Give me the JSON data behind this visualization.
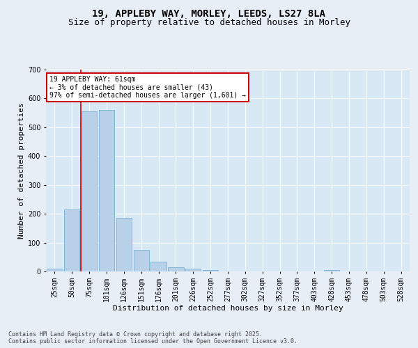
{
  "title_line1": "19, APPLEBY WAY, MORLEY, LEEDS, LS27 8LA",
  "title_line2": "Size of property relative to detached houses in Morley",
  "xlabel": "Distribution of detached houses by size in Morley",
  "ylabel": "Number of detached properties",
  "bar_labels": [
    "25sqm",
    "50sqm",
    "75sqm",
    "101sqm",
    "126sqm",
    "151sqm",
    "176sqm",
    "201sqm",
    "226sqm",
    "252sqm",
    "277sqm",
    "302sqm",
    "327sqm",
    "352sqm",
    "377sqm",
    "403sqm",
    "428sqm",
    "453sqm",
    "478sqm",
    "503sqm",
    "528sqm"
  ],
  "bar_values": [
    10,
    215,
    555,
    560,
    185,
    75,
    35,
    14,
    9,
    5,
    0,
    0,
    0,
    0,
    0,
    0,
    5,
    0,
    0,
    0,
    0
  ],
  "bar_color": "#b8d0e8",
  "bar_edge_color": "#7aafd4",
  "bg_color": "#e8eef5",
  "plot_bg_color": "#d8e8f4",
  "annotation_box_edgecolor": "#cc0000",
  "vline_color": "#cc0000",
  "annotation_text": "19 APPLEBY WAY: 61sqm\n← 3% of detached houses are smaller (43)\n97% of semi-detached houses are larger (1,601) →",
  "ylim": [
    0,
    700
  ],
  "yticks": [
    0,
    100,
    200,
    300,
    400,
    500,
    600,
    700
  ],
  "footer_line1": "Contains HM Land Registry data © Crown copyright and database right 2025.",
  "footer_line2": "Contains public sector information licensed under the Open Government Licence v3.0.",
  "title_fontsize": 10,
  "subtitle_fontsize": 9,
  "axis_label_fontsize": 8,
  "tick_fontsize": 7,
  "annotation_fontsize": 7,
  "footer_fontsize": 6
}
